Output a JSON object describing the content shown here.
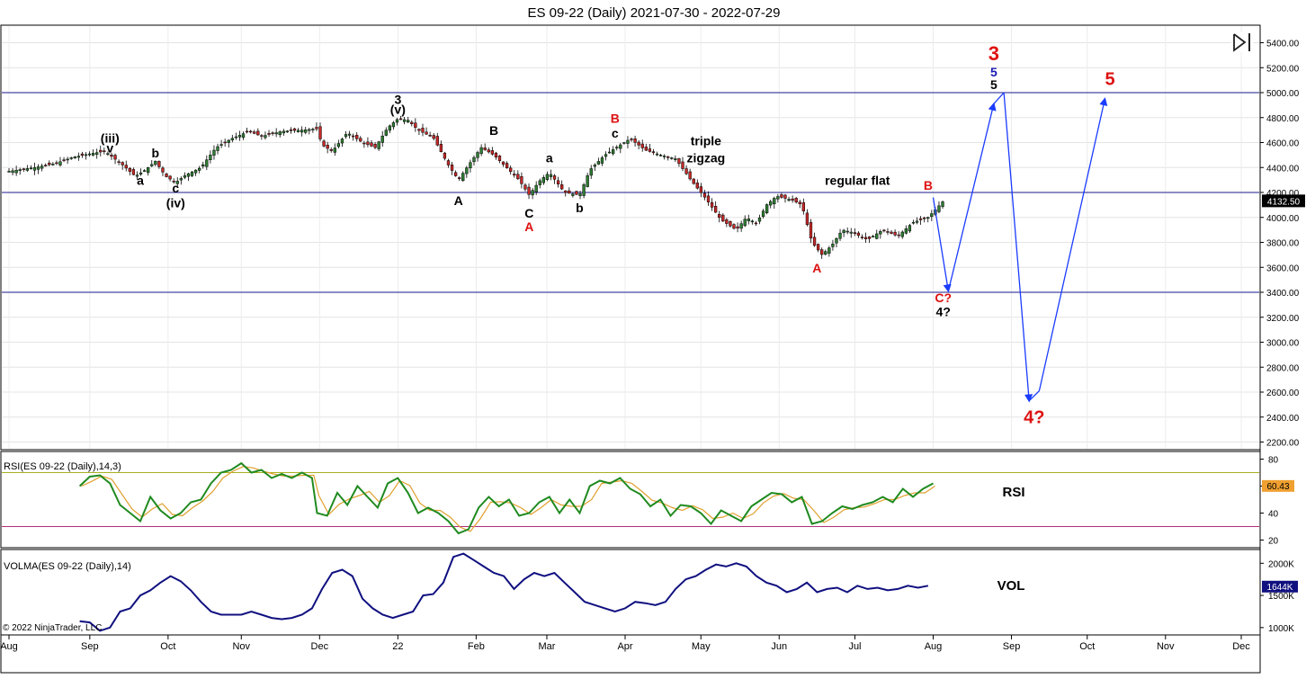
{
  "title": "ES 09-22 (Daily)  2021-07-30 - 2022-07-29",
  "copyright": "© 2022 NinjaTrader, LLC",
  "chart_data": {
    "type": "candlestick",
    "price_axis": {
      "min": 2100,
      "max": 5500,
      "ticks": [
        2200,
        2400,
        2600,
        2800,
        3000,
        3200,
        3400,
        3600,
        3800,
        4000,
        4200,
        4400,
        4600,
        4800,
        5000,
        5200,
        5400
      ],
      "tick_labels": [
        "2200.00",
        "2400.00",
        "2600.00",
        "2800.00",
        "3000.00",
        "3200.00",
        "3400.00",
        "3600.00",
        "3800.00",
        "4000.00",
        "4200.00",
        "4400.00",
        "4600.00",
        "4800.00",
        "5000.00",
        "5200.00",
        "5400.00"
      ],
      "last_price": 4132.5,
      "last_price_label": "4132.50",
      "grid": true
    },
    "horizontal_lines": [
      5000,
      4200,
      3400
    ],
    "months": [
      {
        "label": "Aug",
        "day": 0
      },
      {
        "label": "Sep",
        "day": 32
      },
      {
        "label": "Oct",
        "day": 63
      },
      {
        "label": "Nov",
        "day": 92
      },
      {
        "label": "Dec",
        "day": 123
      },
      {
        "label": "22",
        "day": 154
      },
      {
        "label": "Feb",
        "day": 185
      },
      {
        "label": "Mar",
        "day": 213
      },
      {
        "label": "Apr",
        "day": 244
      },
      {
        "label": "May",
        "day": 274
      },
      {
        "label": "Jun",
        "day": 305
      },
      {
        "label": "Jul",
        "day": 335
      },
      {
        "label": "Aug",
        "day": 366
      },
      {
        "label": "Sep",
        "day": 397
      },
      {
        "label": "Oct",
        "day": 427
      },
      {
        "label": "Nov",
        "day": 458
      },
      {
        "label": "Dec",
        "day": 488
      }
    ],
    "x_range_days": [
      0,
      500
    ],
    "price_path": [
      [
        0,
        4370
      ],
      [
        10,
        4400
      ],
      [
        18,
        4430
      ],
      [
        25,
        4480
      ],
      [
        32,
        4510
      ],
      [
        38,
        4530
      ],
      [
        45,
        4420
      ],
      [
        50,
        4330
      ],
      [
        54,
        4380
      ],
      [
        58,
        4450
      ],
      [
        62,
        4330
      ],
      [
        66,
        4280
      ],
      [
        70,
        4340
      ],
      [
        76,
        4400
      ],
      [
        82,
        4560
      ],
      [
        88,
        4630
      ],
      [
        95,
        4690
      ],
      [
        100,
        4650
      ],
      [
        108,
        4690
      ],
      [
        116,
        4700
      ],
      [
        122,
        4710
      ],
      [
        124,
        4580
      ],
      [
        128,
        4530
      ],
      [
        134,
        4680
      ],
      [
        140,
        4600
      ],
      [
        145,
        4560
      ],
      [
        150,
        4720
      ],
      [
        154,
        4790
      ],
      [
        158,
        4780
      ],
      [
        162,
        4700
      ],
      [
        168,
        4640
      ],
      [
        174,
        4420
      ],
      [
        178,
        4300
      ],
      [
        182,
        4420
      ],
      [
        187,
        4560
      ],
      [
        192,
        4500
      ],
      [
        196,
        4420
      ],
      [
        202,
        4300
      ],
      [
        206,
        4180
      ],
      [
        210,
        4290
      ],
      [
        214,
        4360
      ],
      [
        220,
        4200
      ],
      [
        226,
        4180
      ],
      [
        230,
        4380
      ],
      [
        236,
        4500
      ],
      [
        242,
        4580
      ],
      [
        246,
        4630
      ],
      [
        252,
        4540
      ],
      [
        258,
        4500
      ],
      [
        264,
        4470
      ],
      [
        270,
        4300
      ],
      [
        276,
        4150
      ],
      [
        282,
        3980
      ],
      [
        288,
        3900
      ],
      [
        292,
        4000
      ],
      [
        296,
        3950
      ],
      [
        300,
        4100
      ],
      [
        304,
        4170
      ],
      [
        310,
        4140
      ],
      [
        314,
        4100
      ],
      [
        318,
        3800
      ],
      [
        322,
        3700
      ],
      [
        326,
        3780
      ],
      [
        330,
        3900
      ],
      [
        334,
        3880
      ],
      [
        340,
        3820
      ],
      [
        346,
        3900
      ],
      [
        352,
        3850
      ],
      [
        358,
        3960
      ],
      [
        364,
        4000
      ],
      [
        370,
        4130
      ]
    ],
    "rsi": {
      "label": "RSI(ES 09-22 (Daily),14,3)",
      "tag": "RSI",
      "axis_min": 15,
      "axis_max": 85,
      "ticks": [
        20,
        40,
        60,
        80
      ],
      "tick_labels": [
        "20",
        "40",
        "60",
        "80"
      ],
      "upper_level": 70,
      "lower_level": 30,
      "last_value": 60.43,
      "last_label": "60.43",
      "points": [
        [
          28,
          60
        ],
        [
          32,
          67
        ],
        [
          36,
          68
        ],
        [
          40,
          62
        ],
        [
          44,
          46
        ],
        [
          48,
          40
        ],
        [
          52,
          34
        ],
        [
          56,
          52
        ],
        [
          60,
          42
        ],
        [
          64,
          36
        ],
        [
          68,
          40
        ],
        [
          72,
          48
        ],
        [
          76,
          50
        ],
        [
          80,
          62
        ],
        [
          84,
          70
        ],
        [
          88,
          72
        ],
        [
          92,
          77
        ],
        [
          96,
          70
        ],
        [
          100,
          72
        ],
        [
          104,
          66
        ],
        [
          108,
          69
        ],
        [
          112,
          66
        ],
        [
          116,
          70
        ],
        [
          120,
          66
        ],
        [
          122,
          40
        ],
        [
          126,
          38
        ],
        [
          130,
          55
        ],
        [
          134,
          46
        ],
        [
          138,
          60
        ],
        [
          142,
          52
        ],
        [
          146,
          44
        ],
        [
          150,
          62
        ],
        [
          154,
          66
        ],
        [
          158,
          55
        ],
        [
          162,
          40
        ],
        [
          166,
          44
        ],
        [
          170,
          40
        ],
        [
          174,
          34
        ],
        [
          178,
          25
        ],
        [
          182,
          28
        ],
        [
          186,
          44
        ],
        [
          190,
          52
        ],
        [
          194,
          45
        ],
        [
          198,
          50
        ],
        [
          202,
          38
        ],
        [
          206,
          40
        ],
        [
          210,
          48
        ],
        [
          214,
          52
        ],
        [
          218,
          40
        ],
        [
          222,
          50
        ],
        [
          226,
          40
        ],
        [
          230,
          60
        ],
        [
          234,
          64
        ],
        [
          238,
          62
        ],
        [
          242,
          66
        ],
        [
          246,
          58
        ],
        [
          250,
          54
        ],
        [
          254,
          45
        ],
        [
          258,
          50
        ],
        [
          262,
          38
        ],
        [
          266,
          46
        ],
        [
          270,
          45
        ],
        [
          274,
          40
        ],
        [
          278,
          32
        ],
        [
          282,
          42
        ],
        [
          286,
          38
        ],
        [
          290,
          34
        ],
        [
          294,
          45
        ],
        [
          298,
          50
        ],
        [
          302,
          55
        ],
        [
          306,
          54
        ],
        [
          310,
          48
        ],
        [
          314,
          52
        ],
        [
          318,
          32
        ],
        [
          322,
          34
        ],
        [
          326,
          40
        ],
        [
          330,
          45
        ],
        [
          334,
          43
        ],
        [
          338,
          46
        ],
        [
          342,
          48
        ],
        [
          346,
          52
        ],
        [
          350,
          48
        ],
        [
          354,
          58
        ],
        [
          358,
          52
        ],
        [
          362,
          58
        ],
        [
          366,
          62
        ]
      ]
    },
    "volma": {
      "label": "VOLMA(ES 09-22 (Daily),14)",
      "tag": "VOL",
      "axis_min": 900,
      "axis_max": 2200,
      "ticks": [
        1000,
        1500,
        2000
      ],
      "tick_labels": [
        "1000K",
        "1500K",
        "2000K"
      ],
      "last_value": 1644,
      "last_label": "1644K",
      "points": [
        [
          28,
          1100
        ],
        [
          32,
          1080
        ],
        [
          36,
          950
        ],
        [
          40,
          1000
        ],
        [
          44,
          1250
        ],
        [
          48,
          1300
        ],
        [
          52,
          1500
        ],
        [
          56,
          1580
        ],
        [
          60,
          1700
        ],
        [
          64,
          1800
        ],
        [
          68,
          1720
        ],
        [
          72,
          1580
        ],
        [
          76,
          1400
        ],
        [
          80,
          1250
        ],
        [
          84,
          1200
        ],
        [
          88,
          1200
        ],
        [
          92,
          1200
        ],
        [
          96,
          1250
        ],
        [
          100,
          1200
        ],
        [
          104,
          1150
        ],
        [
          108,
          1130
        ],
        [
          112,
          1150
        ],
        [
          116,
          1200
        ],
        [
          120,
          1300
        ],
        [
          124,
          1600
        ],
        [
          128,
          1850
        ],
        [
          132,
          1900
        ],
        [
          136,
          1800
        ],
        [
          140,
          1450
        ],
        [
          144,
          1300
        ],
        [
          148,
          1200
        ],
        [
          152,
          1150
        ],
        [
          156,
          1200
        ],
        [
          160,
          1250
        ],
        [
          164,
          1500
        ],
        [
          168,
          1520
        ],
        [
          172,
          1700
        ],
        [
          176,
          2100
        ],
        [
          180,
          2150
        ],
        [
          184,
          2050
        ],
        [
          188,
          1950
        ],
        [
          192,
          1850
        ],
        [
          196,
          1800
        ],
        [
          200,
          1600
        ],
        [
          204,
          1750
        ],
        [
          208,
          1850
        ],
        [
          212,
          1800
        ],
        [
          216,
          1850
        ],
        [
          220,
          1700
        ],
        [
          224,
          1550
        ],
        [
          228,
          1400
        ],
        [
          232,
          1350
        ],
        [
          236,
          1300
        ],
        [
          240,
          1250
        ],
        [
          244,
          1300
        ],
        [
          248,
          1400
        ],
        [
          252,
          1380
        ],
        [
          256,
          1350
        ],
        [
          260,
          1400
        ],
        [
          264,
          1600
        ],
        [
          268,
          1750
        ],
        [
          272,
          1800
        ],
        [
          276,
          1900
        ],
        [
          280,
          1980
        ],
        [
          284,
          1950
        ],
        [
          288,
          2000
        ],
        [
          292,
          1950
        ],
        [
          296,
          1800
        ],
        [
          300,
          1700
        ],
        [
          304,
          1650
        ],
        [
          308,
          1550
        ],
        [
          312,
          1600
        ],
        [
          316,
          1700
        ],
        [
          320,
          1550
        ],
        [
          324,
          1600
        ],
        [
          328,
          1620
        ],
        [
          332,
          1550
        ],
        [
          336,
          1650
        ],
        [
          340,
          1600
        ],
        [
          344,
          1620
        ],
        [
          348,
          1580
        ],
        [
          352,
          1600
        ],
        [
          356,
          1650
        ],
        [
          360,
          1620
        ],
        [
          364,
          1650
        ]
      ]
    },
    "annotations": [
      {
        "text": "(iii)",
        "day": 40,
        "price": 4600,
        "color": "#000000",
        "size": 14
      },
      {
        "text": "v",
        "day": 40,
        "price": 4520,
        "color": "#000000",
        "size": 14
      },
      {
        "text": "b",
        "day": 58,
        "price": 4480,
        "color": "#000000",
        "size": 14
      },
      {
        "text": "a",
        "day": 52,
        "price": 4260,
        "color": "#000000",
        "size": 14
      },
      {
        "text": "c",
        "day": 66,
        "price": 4200,
        "color": "#000000",
        "size": 14
      },
      {
        "text": "(iv)",
        "day": 66,
        "price": 4080,
        "color": "#000000",
        "size": 14
      },
      {
        "text": "3",
        "day": 154,
        "price": 4910,
        "color": "#000000",
        "size": 14
      },
      {
        "text": "(v)",
        "day": 154,
        "price": 4830,
        "color": "#000000",
        "size": 14
      },
      {
        "text": "A",
        "day": 178,
        "price": 4100,
        "color": "#000000",
        "size": 14
      },
      {
        "text": "B",
        "day": 192,
        "price": 4660,
        "color": "#000000",
        "size": 14
      },
      {
        "text": "a",
        "day": 214,
        "price": 4440,
        "color": "#000000",
        "size": 14
      },
      {
        "text": "C",
        "day": 206,
        "price": 4000,
        "color": "#000000",
        "size": 14
      },
      {
        "text": "A",
        "day": 206,
        "price": 3890,
        "color": "#dd1111",
        "size": 14
      },
      {
        "text": "b",
        "day": 226,
        "price": 4040,
        "color": "#000000",
        "size": 14
      },
      {
        "text": "B",
        "day": 240,
        "price": 4760,
        "color": "#dd1111",
        "size": 14
      },
      {
        "text": "c",
        "day": 240,
        "price": 4640,
        "color": "#000000",
        "size": 14
      },
      {
        "text": "triple",
        "day": 276,
        "price": 4580,
        "color": "#000000",
        "size": 14
      },
      {
        "text": "zigzag",
        "day": 276,
        "price": 4440,
        "color": "#000000",
        "size": 14
      },
      {
        "text": "regular flat",
        "day": 336,
        "price": 4260,
        "color": "#000000",
        "size": 14
      },
      {
        "text": "B",
        "day": 364,
        "price": 4220,
        "color": "#dd1111",
        "size": 14
      },
      {
        "text": "A",
        "day": 320,
        "price": 3560,
        "color": "#dd1111",
        "size": 14
      },
      {
        "text": "C?",
        "day": 370,
        "price": 3320,
        "color": "#dd1111",
        "size": 14
      },
      {
        "text": "4?",
        "day": 370,
        "price": 3210,
        "color": "#000000",
        "size": 14
      },
      {
        "text": "3",
        "day": 390,
        "price": 5260,
        "color": "#dd1111",
        "size": 22
      },
      {
        "text": "5",
        "day": 390,
        "price": 5130,
        "color": "#1a1ab5",
        "size": 14
      },
      {
        "text": "5",
        "day": 390,
        "price": 5030,
        "color": "#000000",
        "size": 14
      },
      {
        "text": "5",
        "day": 436,
        "price": 5060,
        "color": "#dd1111",
        "size": 20
      },
      {
        "text": "4?",
        "day": 406,
        "price": 2350,
        "color": "#dd1111",
        "size": 20
      }
    ],
    "projection_path": [
      [
        366,
        4160
      ],
      [
        372,
        3410
      ],
      [
        390,
        4910
      ],
      [
        394,
        5000
      ],
      [
        404,
        2530
      ],
      [
        408,
        2610
      ],
      [
        434,
        4950
      ]
    ]
  }
}
